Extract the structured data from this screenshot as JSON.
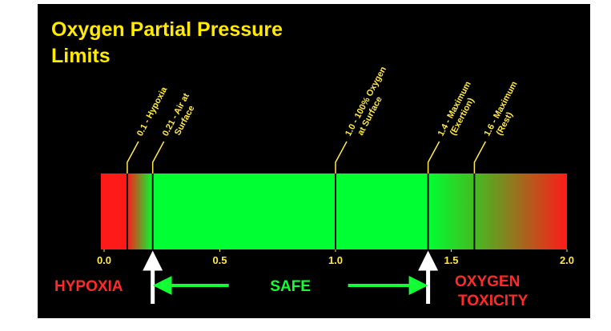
{
  "header": {
    "title_lines": [
      "Oxygen Partial Pressure",
      "Limits"
    ]
  },
  "scale": {
    "min": 0,
    "max": 2,
    "ticks": [
      {
        "value": 0,
        "label": "0.0"
      },
      {
        "value": 0.5,
        "label": "0.5"
      },
      {
        "value": 1,
        "label": "1.0"
      },
      {
        "value": 1.5,
        "label": "1.5"
      },
      {
        "value": 2,
        "label": "2.0"
      }
    ]
  },
  "markers": [
    {
      "value": 0.1,
      "lines": [
        "0.1 - Hypoxia"
      ]
    },
    {
      "value": 0.21,
      "lines": [
        "0.21 - Air at",
        "Surface"
      ]
    },
    {
      "value": 1,
      "lines": [
        "1.0 - 100% Oxygen",
        "at Surface"
      ]
    },
    {
      "value": 1.4,
      "lines": [
        "1.4 - Maximum",
        "(Exertion)"
      ]
    },
    {
      "value": 1.6,
      "lines": [
        "1.6 - Maximum",
        "(Rest)"
      ]
    }
  ],
  "zones": {
    "hypoxia": "HYPOXIA",
    "safe": "SAFE",
    "toxicity_lines": [
      "OXYGEN",
      "TOXICITY"
    ]
  },
  "arrows": {
    "safe_from": 0.21,
    "safe_to": 1.4
  }
}
